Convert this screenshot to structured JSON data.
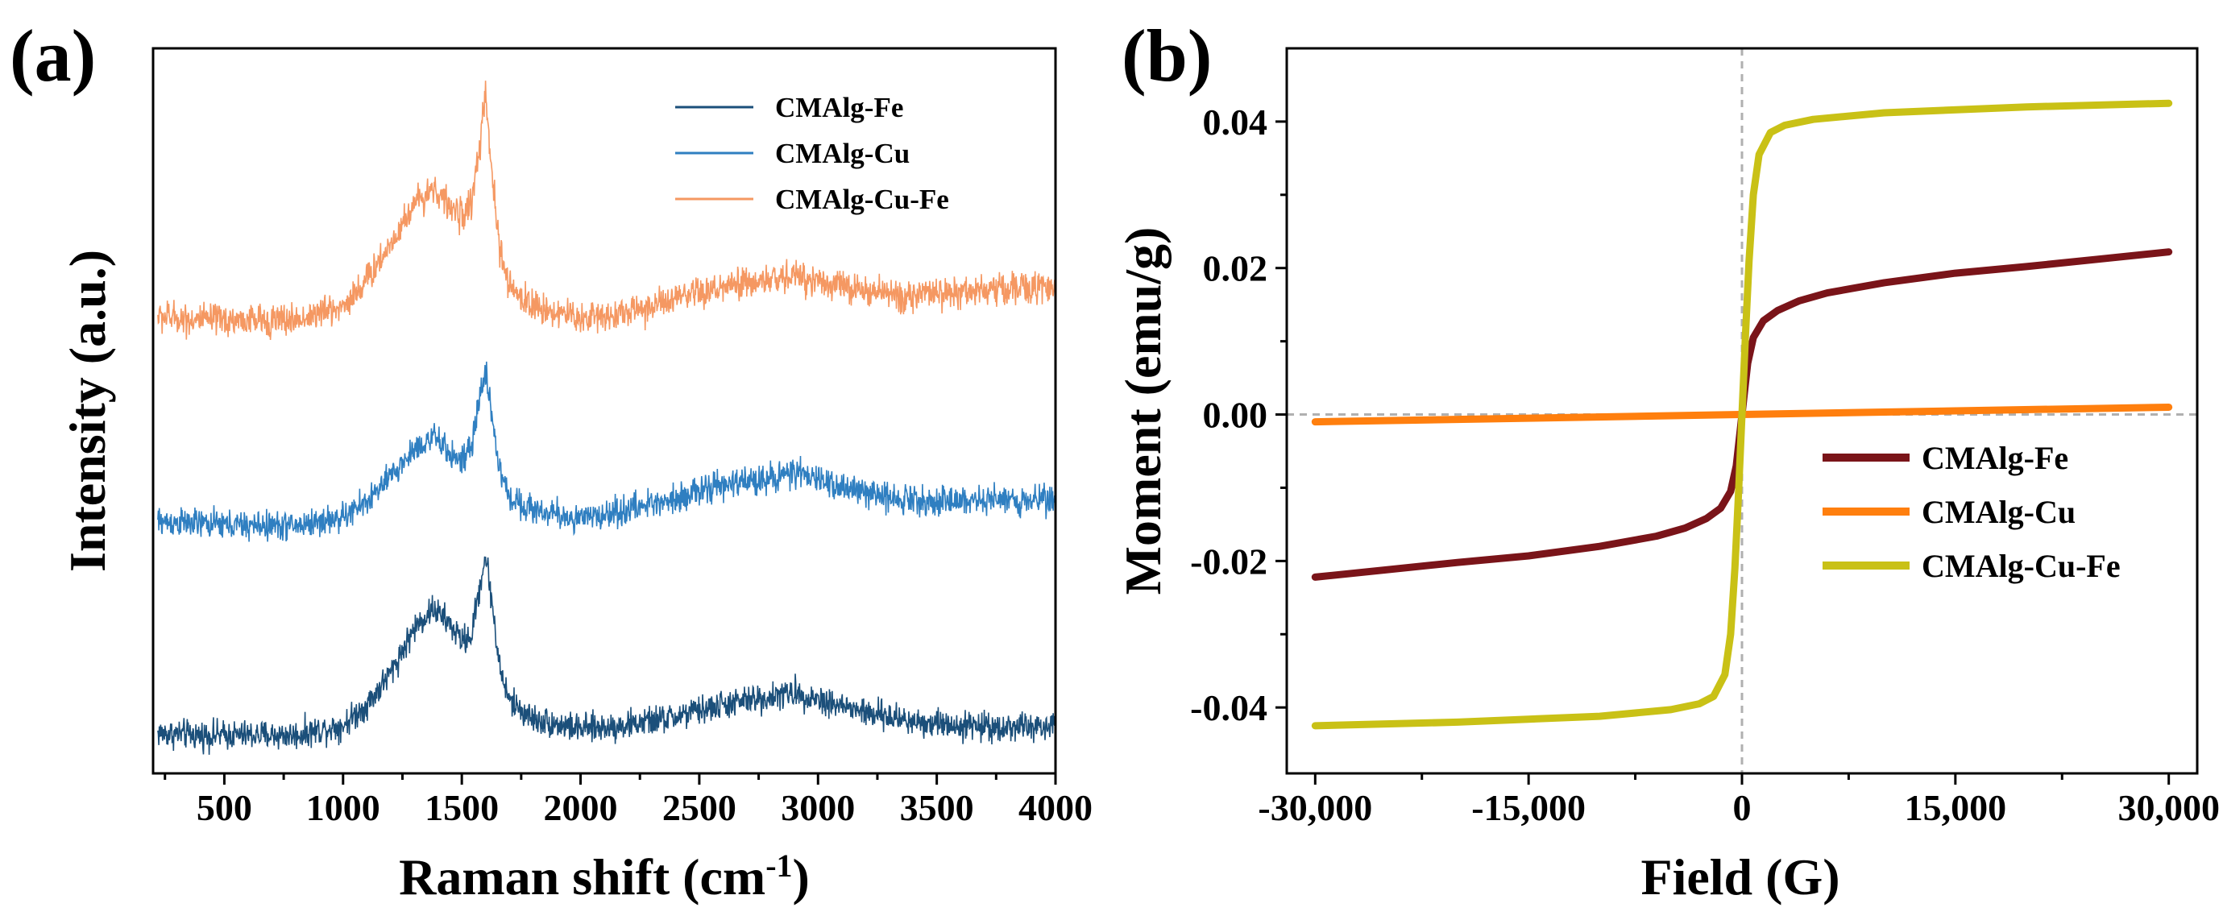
{
  "chart_data": [
    {
      "panel_label": "(a)",
      "type": "line",
      "title": "",
      "xlabel": "Raman shift (cm",
      "xlabel_sup": "-1",
      "xlabel_close": ")",
      "ylabel": "Intensity (a.u.)",
      "xlim": [
        200,
        4000
      ],
      "x_ticks": [
        500,
        1000,
        1500,
        2000,
        2500,
        3000,
        3500,
        4000
      ],
      "x_tick_labels": [
        "500",
        "1000",
        "1500",
        "2000",
        "2500",
        "3000",
        "3500",
        "4000"
      ],
      "y_ticks_shown": false,
      "legend_position": "top-right",
      "grid": false,
      "series": [
        {
          "name": "CMAlg-Fe",
          "color": "#1b4f7a",
          "offset": 0.0,
          "x": [
            220,
            400,
            600,
            800,
            1000,
            1100,
            1200,
            1300,
            1380,
            1450,
            1500,
            1540,
            1580,
            1600,
            1620,
            1660,
            1700,
            1800,
            2000,
            2200,
            2400,
            2600,
            2800,
            2900,
            3000,
            3200,
            3400,
            3600,
            3800,
            4000
          ],
          "y": [
            0.2,
            0.19,
            0.19,
            0.19,
            0.24,
            0.34,
            0.5,
            0.72,
            0.82,
            0.74,
            0.66,
            0.68,
            0.96,
            1.08,
            0.92,
            0.52,
            0.36,
            0.27,
            0.22,
            0.24,
            0.28,
            0.34,
            0.38,
            0.4,
            0.37,
            0.3,
            0.26,
            0.24,
            0.23,
            0.23
          ],
          "noise": 0.045
        },
        {
          "name": "CMAlg-Cu",
          "color": "#2f7fc1",
          "offset": 1.05,
          "x": [
            220,
            400,
            600,
            800,
            1000,
            1100,
            1200,
            1300,
            1380,
            1450,
            1500,
            1540,
            1580,
            1600,
            1620,
            1660,
            1700,
            1800,
            2000,
            2200,
            2400,
            2600,
            2800,
            2900,
            3000,
            3200,
            3400,
            3600,
            3800,
            4000
          ],
          "y": [
            0.2,
            0.19,
            0.18,
            0.18,
            0.22,
            0.3,
            0.42,
            0.56,
            0.62,
            0.54,
            0.5,
            0.56,
            0.84,
            0.96,
            0.78,
            0.45,
            0.32,
            0.26,
            0.21,
            0.26,
            0.32,
            0.38,
            0.42,
            0.44,
            0.41,
            0.34,
            0.31,
            0.3,
            0.31,
            0.31
          ],
          "noise": 0.045
        },
        {
          "name": "CMAlg-Cu-Fe",
          "color": "#f59862",
          "offset": 2.05,
          "x": [
            220,
            400,
            600,
            800,
            1000,
            1100,
            1200,
            1300,
            1380,
            1450,
            1500,
            1540,
            1580,
            1600,
            1620,
            1660,
            1700,
            1800,
            2000,
            2200,
            2400,
            2600,
            2800,
            2900,
            3000,
            3200,
            3400,
            3600,
            3800,
            4000
          ],
          "y": [
            0.22,
            0.2,
            0.2,
            0.2,
            0.27,
            0.4,
            0.58,
            0.78,
            0.86,
            0.76,
            0.72,
            0.78,
            1.1,
            1.32,
            1.0,
            0.55,
            0.36,
            0.27,
            0.21,
            0.24,
            0.3,
            0.36,
            0.4,
            0.42,
            0.4,
            0.34,
            0.32,
            0.34,
            0.36,
            0.36
          ],
          "noise": 0.05
        }
      ]
    },
    {
      "panel_label": "(b)",
      "type": "line",
      "title": "",
      "xlabel": "Field (G)",
      "ylabel": "Moment (emu/g)",
      "xlim": [
        -32000,
        32000
      ],
      "ylim": [
        -0.049,
        0.05
      ],
      "x_ticks": [
        -30000,
        -15000,
        0,
        15000,
        30000
      ],
      "x_tick_labels": [
        "-30,000",
        "-15,000",
        "0",
        "15,000",
        "30,000"
      ],
      "y_ticks": [
        -0.04,
        -0.02,
        0.0,
        0.02,
        0.04
      ],
      "y_tick_labels": [
        "-0.04",
        "-0.02",
        "0.00",
        "0.02",
        "0.04"
      ],
      "legend_position": "lower-right",
      "grid": false,
      "reference_lines": {
        "x": 0,
        "y": 0
      },
      "series": [
        {
          "name": "CMAlg-Fe",
          "color": "#7a1419",
          "x": [
            -30000,
            -25000,
            -20000,
            -15000,
            -10000,
            -6000,
            -4000,
            -2500,
            -1500,
            -800,
            -400,
            0,
            400,
            800,
            1500,
            2500,
            4000,
            6000,
            10000,
            15000,
            20000,
            25000,
            30000
          ],
          "y": [
            -0.0222,
            -0.0212,
            -0.0202,
            -0.0193,
            -0.018,
            -0.0166,
            -0.0155,
            -0.0142,
            -0.0128,
            -0.0105,
            -0.007,
            0.0,
            0.007,
            0.0105,
            0.0128,
            0.0142,
            0.0155,
            0.0166,
            0.018,
            0.0193,
            0.0202,
            0.0212,
            0.0222
          ]
        },
        {
          "name": "CMAlg-Cu",
          "color": "#ff7f0e",
          "x": [
            -30000,
            -15000,
            0,
            15000,
            30000
          ],
          "y": [
            -0.001,
            -0.0005,
            0.0,
            0.0005,
            0.001
          ]
        },
        {
          "name": "CMAlg-Cu-Fe",
          "color": "#c9c116",
          "x": [
            -30000,
            -20000,
            -10000,
            -5000,
            -3000,
            -2000,
            -1200,
            -800,
            -500,
            -250,
            0,
            250,
            500,
            800,
            1200,
            2000,
            3000,
            5000,
            10000,
            20000,
            30000
          ],
          "y": [
            -0.0425,
            -0.042,
            -0.0412,
            -0.0403,
            -0.0395,
            -0.0385,
            -0.0355,
            -0.03,
            -0.021,
            -0.011,
            0.0,
            0.011,
            0.021,
            0.03,
            0.0355,
            0.0385,
            0.0395,
            0.0403,
            0.0412,
            0.042,
            0.0425
          ]
        }
      ]
    }
  ]
}
